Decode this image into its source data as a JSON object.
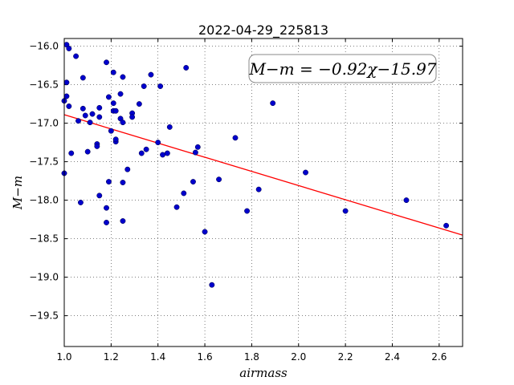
{
  "chart_data": {
    "type": "scatter",
    "title": "2022-04-29_225813",
    "xlabel": "airmass",
    "ylabel": "M−m",
    "xlim": [
      1.0,
      2.7
    ],
    "ylim": [
      -19.9,
      -15.9
    ],
    "xticks": [
      1.0,
      1.2,
      1.4,
      1.6,
      1.8,
      2.0,
      2.2,
      2.4,
      2.6
    ],
    "yticks": [
      -16.0,
      -16.5,
      -17.0,
      -17.5,
      -18.0,
      -18.5,
      -19.0,
      -19.5
    ],
    "xtick_labels": [
      "1.0",
      "1.2",
      "1.4",
      "1.6",
      "1.8",
      "2.0",
      "2.2",
      "2.4",
      "2.6"
    ],
    "ytick_labels": [
      "−16.0",
      "−16.5",
      "−17.0",
      "−17.5",
      "−18.0",
      "−18.5",
      "−19.0",
      "−19.5"
    ],
    "grid": true,
    "annotation": "M−m = −0.92χ−15.97",
    "point_color": "#0000cc",
    "line_color": "#ff0000",
    "fit": {
      "slope": -0.92,
      "intercept": -15.97
    },
    "points": [
      [
        1.0,
        -16.71
      ],
      [
        1.0,
        -17.65
      ],
      [
        1.01,
        -15.98
      ],
      [
        1.01,
        -16.47
      ],
      [
        1.01,
        -16.65
      ],
      [
        1.02,
        -16.03
      ],
      [
        1.02,
        -16.78
      ],
      [
        1.03,
        -17.39
      ],
      [
        1.05,
        -16.13
      ],
      [
        1.06,
        -16.97
      ],
      [
        1.07,
        -18.03
      ],
      [
        1.08,
        -16.41
      ],
      [
        1.08,
        -16.81
      ],
      [
        1.09,
        -16.9
      ],
      [
        1.1,
        -17.37
      ],
      [
        1.11,
        -16.99
      ],
      [
        1.12,
        -16.88
      ],
      [
        1.14,
        -17.27
      ],
      [
        1.14,
        -17.3
      ],
      [
        1.15,
        -16.92
      ],
      [
        1.15,
        -17.94
      ],
      [
        1.15,
        -16.8
      ],
      [
        1.18,
        -16.21
      ],
      [
        1.18,
        -18.1
      ],
      [
        1.18,
        -18.29
      ],
      [
        1.19,
        -17.76
      ],
      [
        1.19,
        -16.66
      ],
      [
        1.2,
        -17.1
      ],
      [
        1.21,
        -16.74
      ],
      [
        1.21,
        -16.34
      ],
      [
        1.21,
        -16.84
      ],
      [
        1.22,
        -16.84
      ],
      [
        1.22,
        -17.24
      ],
      [
        1.22,
        -17.21
      ],
      [
        1.24,
        -16.94
      ],
      [
        1.24,
        -16.62
      ],
      [
        1.25,
        -16.99
      ],
      [
        1.25,
        -17.77
      ],
      [
        1.25,
        -18.27
      ],
      [
        1.25,
        -16.4
      ],
      [
        1.27,
        -17.6
      ],
      [
        1.29,
        -16.87
      ],
      [
        1.29,
        -16.92
      ],
      [
        1.32,
        -16.75
      ],
      [
        1.33,
        -17.39
      ],
      [
        1.34,
        -16.52
      ],
      [
        1.35,
        -17.34
      ],
      [
        1.37,
        -16.37
      ],
      [
        1.4,
        -17.25
      ],
      [
        1.41,
        -16.52
      ],
      [
        1.42,
        -17.41
      ],
      [
        1.44,
        -17.39
      ],
      [
        1.45,
        -17.05
      ],
      [
        1.48,
        -18.09
      ],
      [
        1.51,
        -17.91
      ],
      [
        1.52,
        -16.28
      ],
      [
        1.55,
        -17.76
      ],
      [
        1.56,
        -17.38
      ],
      [
        1.57,
        -17.31
      ],
      [
        1.6,
        -18.41
      ],
      [
        1.63,
        -19.1
      ],
      [
        1.66,
        -17.73
      ],
      [
        1.73,
        -17.19
      ],
      [
        1.78,
        -18.14
      ],
      [
        1.83,
        -17.86
      ],
      [
        1.89,
        -16.74
      ],
      [
        2.03,
        -17.64
      ],
      [
        2.2,
        -18.14
      ],
      [
        2.46,
        -18.0
      ],
      [
        2.63,
        -18.33
      ]
    ]
  }
}
